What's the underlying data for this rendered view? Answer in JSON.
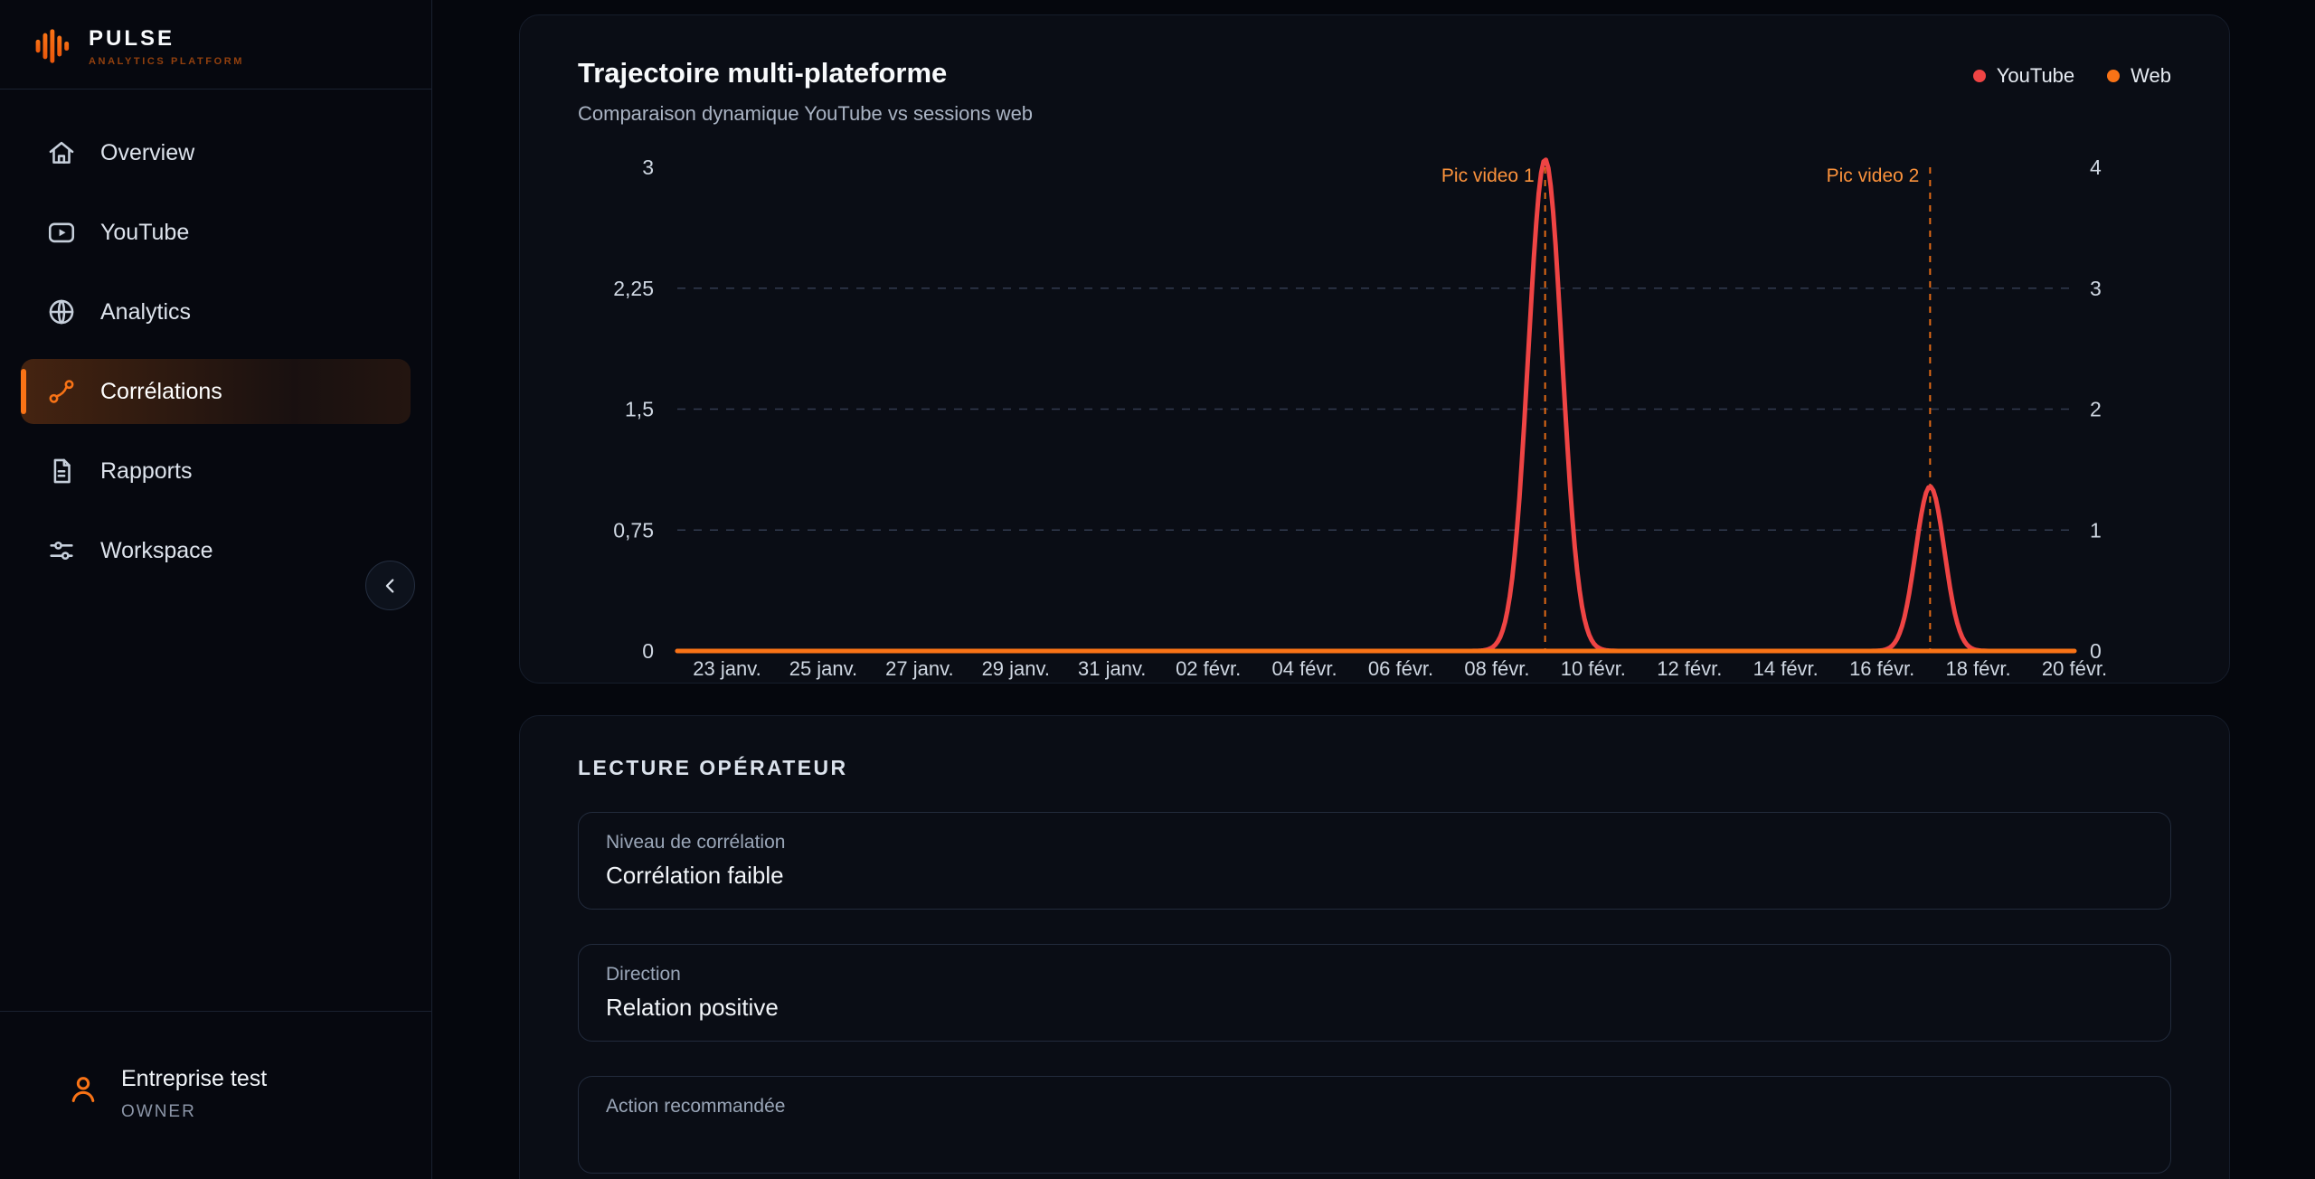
{
  "sidebar": {
    "logo_title": "PULSE",
    "logo_subtitle": "ANALYTICS PLATFORM",
    "items": [
      {
        "label": "Overview",
        "active": false
      },
      {
        "label": "YouTube",
        "active": false
      },
      {
        "label": "Analytics",
        "active": false
      },
      {
        "label": "Corrélations",
        "active": true
      },
      {
        "label": "Rapports",
        "active": false
      },
      {
        "label": "Workspace",
        "active": false
      }
    ],
    "user": {
      "name": "Entreprise test",
      "role": "OWNER"
    }
  },
  "chart_card": {
    "title": "Trajectoire multi-plateforme",
    "subtitle": "Comparaison dynamique YouTube vs sessions web"
  },
  "chart_data": {
    "type": "line",
    "title": "Trajectoire multi-plateforme",
    "x_tick_labels": [
      "23 janv.",
      "25 janv.",
      "27 janv.",
      "29 janv.",
      "31 janv.",
      "02 févr.",
      "04 févr.",
      "06 févr.",
      "08 févr.",
      "10 févr.",
      "12 févr.",
      "14 févr.",
      "16 févr.",
      "18 févr.",
      "20 févr."
    ],
    "x_range_days": 28,
    "left_axis": {
      "max": 3,
      "ticks": [
        {
          "v": 0,
          "label": "0"
        },
        {
          "v": 0.75,
          "label": "0,75"
        },
        {
          "v": 1.5,
          "label": "1,5"
        },
        {
          "v": 2.25,
          "label": "2,25"
        },
        {
          "v": 3,
          "label": "3"
        }
      ]
    },
    "right_axis": {
      "max": 4,
      "ticks": [
        {
          "v": 0,
          "label": "0"
        },
        {
          "v": 1,
          "label": "1"
        },
        {
          "v": 2,
          "label": "2"
        },
        {
          "v": 3,
          "label": "3"
        },
        {
          "v": 4,
          "label": "4"
        }
      ]
    },
    "grid_values_left_axis": [
      0.75,
      1.5,
      2.25
    ],
    "series": [
      {
        "name": "YouTube",
        "color": "#ef4444",
        "axis": "left",
        "baseline": 0,
        "peaks": [
          {
            "day": 17,
            "date": "09 févr.",
            "value": 3.05,
            "width_days": 0.35
          },
          {
            "day": 25,
            "date": "17 févr.",
            "value": 1.02,
            "width_days": 0.3
          }
        ]
      },
      {
        "name": "Web",
        "color": "#f97316",
        "axis": "right",
        "baseline": 0,
        "peaks": []
      }
    ],
    "annotations": [
      {
        "label": "Pic video 1",
        "day": 17
      },
      {
        "label": "Pic video 2",
        "day": 25
      }
    ],
    "annotation_color": "#fb923c",
    "grid_color": "#39445a",
    "tick_color": "#cfd7e2"
  },
  "operator_card": {
    "title": "LECTURE OPÉRATEUR",
    "rows": [
      {
        "label": "Niveau de corrélation",
        "value": "Corrélation faible"
      },
      {
        "label": "Direction",
        "value": "Relation positive"
      },
      {
        "label": "Action recommandée",
        "value": ""
      }
    ]
  }
}
